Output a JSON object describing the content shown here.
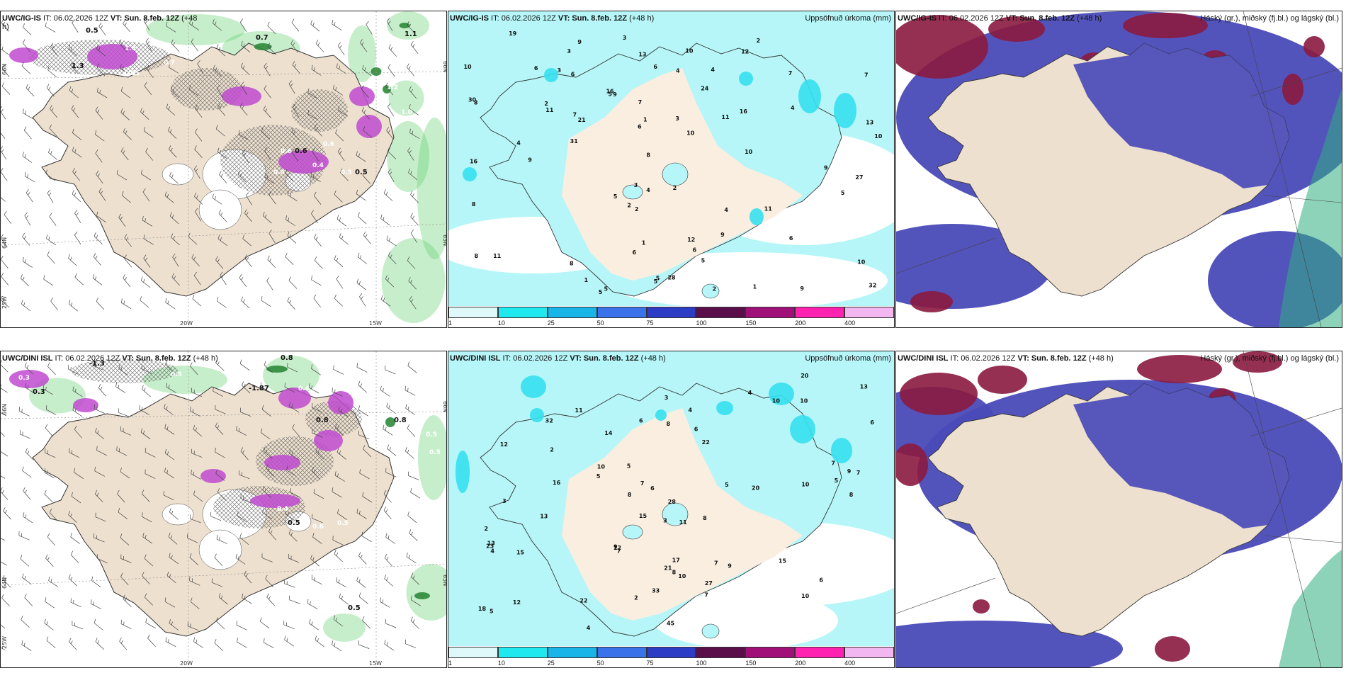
{
  "panels": [
    {
      "id": "p1",
      "model": "UWC/IG-IS",
      "it_label": "IT:",
      "it": "06.02.2026 12Z",
      "vt_label": "VT:",
      "vt": "Sun. 8.feb. 12Z",
      "lead": "(+48",
      "lead2": "h)",
      "right": "",
      "type": "wind"
    },
    {
      "id": "p2",
      "model": "UWC/IG-IS",
      "it_label": "IT:",
      "it": "06.02.2026 12Z",
      "vt_label": "VT:",
      "vt": "Sun. 8.feb. 12Z",
      "lead": "(+48 h)",
      "right": "Uppsöfnuð úrkoma (mm)",
      "type": "precip"
    },
    {
      "id": "p3",
      "model": "UWC/IG-IS",
      "it_label": "IT:",
      "it": "06.02.2026 12Z",
      "vt_label": "VT:",
      "vt": "Sun. 8.feb. 12Z",
      "lead": "(+48 h)",
      "right": "Háský (gr.), miðský (fj.bl.) og lágský (bl.)",
      "type": "cloud"
    },
    {
      "id": "p4",
      "model": "UWC/DINI ISL",
      "it_label": "IT:",
      "it": "06.02.2026 12Z",
      "vt_label": "VT:",
      "vt": "Sun. 8.feb. 12Z",
      "lead": "(+48 h)",
      "right": "",
      "type": "wind"
    },
    {
      "id": "p5",
      "model": "UWC/DINI ISL",
      "it_label": "IT:",
      "it": "06.02.2026 12Z",
      "vt_label": "VT:",
      "vt": "Sun. 8.feb. 12Z",
      "lead": "(+48 h)",
      "right": "Uppsöfnuð úrkoma (mm)",
      "type": "precip"
    },
    {
      "id": "p6",
      "model": "UWC/DINI ISL",
      "it_label": "IT:",
      "it": "06.02.2026 12Z",
      "vt_label": "VT:",
      "vt": "Sun. 8.feb. 12Z",
      "lead": "(+48 h)",
      "right": "Háský (gr.), miðský (fj.bl.) og lágský (bl.)",
      "type": "cloud"
    }
  ],
  "axis_labels": {
    "lon_20w": "20W",
    "lon_15w": "15W",
    "lat_66n": "66N",
    "lat_64n": "64N",
    "lat_65n": "65N",
    "lon_25w": "25W"
  },
  "colorbar": {
    "labels": [
      "1",
      "10",
      "25",
      "50",
      "75",
      "100",
      "150",
      "200",
      "400"
    ],
    "colors": [
      "#dff9fb",
      "#1fe8ee",
      "#1ab5e8",
      "#3a72ea",
      "#2c3cc4",
      "#5a0e4a",
      "#a01078",
      "#ff22b0",
      "#f2b6f0"
    ]
  },
  "precip_values": {
    "p2": [
      "19",
      "6",
      "5",
      "4",
      "1",
      "13",
      "3",
      "1",
      "4",
      "9",
      "10",
      "6",
      "3",
      "5",
      "3",
      "5",
      "4",
      "6",
      "10",
      "10",
      "8",
      "9",
      "11",
      "10",
      "16",
      "5",
      "6",
      "27",
      "8",
      "7",
      "31",
      "30",
      "32",
      "28",
      "12",
      "11",
      "13",
      "9",
      "16",
      "12",
      "7",
      "11",
      "10",
      "9",
      "2",
      "2",
      "2",
      "3",
      "4",
      "7",
      "5",
      "8",
      "2",
      "4",
      "24",
      "4",
      "3",
      "6",
      "5",
      "16",
      "8",
      "8",
      "9",
      "2",
      "7",
      "9",
      "6",
      "6",
      "5",
      "11",
      "2",
      "10",
      "5",
      "1",
      "1",
      "21"
    ],
    "p5": [
      "11",
      "15",
      "10",
      "7",
      "9",
      "8",
      "6",
      "8",
      "4",
      "5",
      "12",
      "22",
      "20",
      "17",
      "7",
      "6",
      "13",
      "12",
      "10",
      "6",
      "8",
      "11",
      "15",
      "20",
      "10",
      "16",
      "14",
      "13",
      "21",
      "27",
      "22",
      "45",
      "15",
      "18",
      "10",
      "23",
      "33",
      "32",
      "28",
      "12",
      "13",
      "8",
      "9",
      "7",
      "10",
      "6",
      "7",
      "3",
      "2",
      "2",
      "4",
      "7",
      "5",
      "8",
      "6",
      "7",
      "10",
      "5",
      "3",
      "4",
      "5",
      "9",
      "4",
      "5",
      "3",
      "2"
    ]
  },
  "wind_values": {
    "p1": [
      "0.5",
      "1.3",
      "0.5",
      "0.7",
      "0.5",
      "0.7",
      "1.1",
      "1.2",
      "1.0",
      "1.3",
      "0.6",
      "0.4",
      "0.6",
      "0.4",
      "0.5",
      "0.5",
      "1.4",
      "0.6"
    ],
    "p4": [
      "-1.3",
      "0.3",
      "0.4",
      "0.3",
      "0.5",
      "0.7",
      "0.8",
      "-1.87",
      "0.4",
      "0.8",
      "0.5",
      "0.5",
      "0.8",
      "0.9",
      "0.4",
      "0.5",
      "0.6",
      "0.5",
      "0.5"
    ]
  },
  "colors": {
    "land": "#ede0cf",
    "sea_precip": "#b6f6f8",
    "precip_mid": "#36e0ee",
    "cloud_high": "#8b1a3f",
    "cloud_mid": "#4a4ab8",
    "cloud_low": "#2a7ee0",
    "green": "#5fcf6a",
    "magenta": "#c04ad0"
  }
}
